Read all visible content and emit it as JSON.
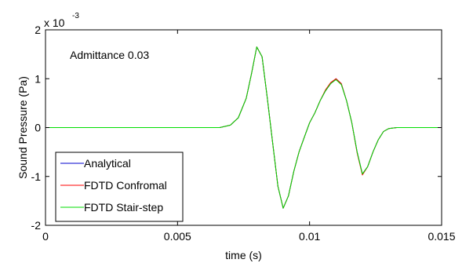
{
  "chart_data": {
    "type": "line",
    "xlabel": "time (s)",
    "ylabel": "Sound Pressure (Pa)",
    "annotation": "Admittance 0.03",
    "y_exponent": {
      "base": "x 10",
      "power": "-3"
    },
    "xlim": [
      0,
      0.015
    ],
    "ylim": [
      -2,
      2
    ],
    "xticks": [
      0,
      0.005,
      0.01,
      0.015
    ],
    "xtick_labels": [
      "0",
      "0.005",
      "0.01",
      "0.015"
    ],
    "yticks": [
      -2,
      -1,
      0,
      1,
      2
    ],
    "ytick_labels": [
      "-2",
      "-1",
      "0",
      "1",
      "2"
    ],
    "grid": false,
    "legend_position": "bottom-left",
    "x": [
      0,
      0.006,
      0.0066,
      0.007,
      0.0073,
      0.0076,
      0.0078,
      0.008,
      0.0082,
      0.0084,
      0.0086,
      0.0088,
      0.009,
      0.0092,
      0.0094,
      0.0096,
      0.0098,
      0.01,
      0.0102,
      0.0104,
      0.0106,
      0.0108,
      0.011,
      0.0112,
      0.0114,
      0.0116,
      0.0118,
      0.012,
      0.0122,
      0.0124,
      0.0126,
      0.0128,
      0.013,
      0.0133,
      0.015
    ],
    "series": [
      {
        "name": "Analytical",
        "color": "#0000cc",
        "values": [
          0,
          0,
          0,
          0.05,
          0.2,
          0.6,
          1.1,
          1.65,
          1.45,
          0.6,
          -0.3,
          -1.2,
          -1.65,
          -1.4,
          -0.9,
          -0.5,
          -0.2,
          0.1,
          0.3,
          0.55,
          0.75,
          0.9,
          1.0,
          0.9,
          0.55,
          0.1,
          -0.5,
          -0.95,
          -0.8,
          -0.5,
          -0.25,
          -0.08,
          -0.02,
          0,
          0
        ]
      },
      {
        "name": "FDTD Confromal",
        "color": "#ff0000",
        "values": [
          0,
          0,
          0,
          0.05,
          0.2,
          0.6,
          1.1,
          1.65,
          1.45,
          0.6,
          -0.3,
          -1.2,
          -1.65,
          -1.4,
          -0.9,
          -0.5,
          -0.2,
          0.1,
          0.3,
          0.55,
          0.77,
          0.92,
          1.0,
          0.9,
          0.55,
          0.1,
          -0.52,
          -0.97,
          -0.8,
          -0.5,
          -0.25,
          -0.08,
          -0.02,
          0,
          0
        ]
      },
      {
        "name": "FDTD Stair-step",
        "color": "#00dd00",
        "values": [
          0,
          0,
          0,
          0.05,
          0.2,
          0.6,
          1.1,
          1.65,
          1.45,
          0.6,
          -0.3,
          -1.2,
          -1.65,
          -1.4,
          -0.9,
          -0.5,
          -0.2,
          0.1,
          0.3,
          0.55,
          0.75,
          0.9,
          0.98,
          0.88,
          0.55,
          0.1,
          -0.5,
          -0.95,
          -0.8,
          -0.5,
          -0.25,
          -0.08,
          -0.02,
          0,
          0
        ]
      }
    ]
  }
}
